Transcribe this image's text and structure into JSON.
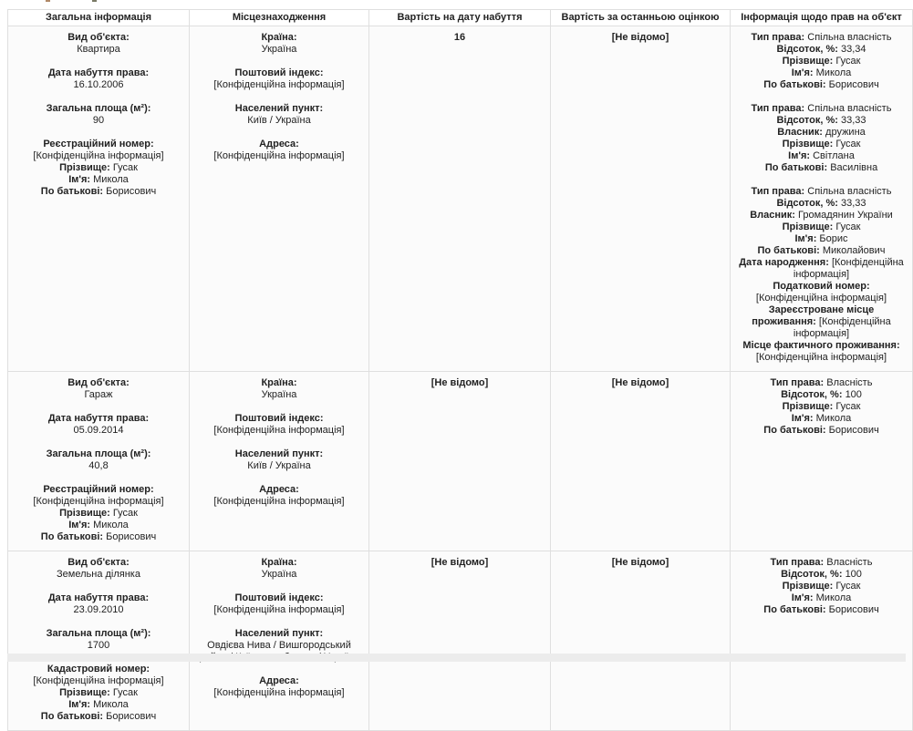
{
  "table": {
    "headers": [
      "Загальна інформація",
      "Місцезнаходження",
      "Вартість на дату набуття",
      "Вартість за останньою оцінкою",
      "Інформація щодо прав на об'єкт"
    ],
    "rows": [
      {
        "general": [
          {
            "inline": false,
            "label": "Вид об'єкта:",
            "value": "Квартира"
          },
          {
            "inline": false,
            "label": "Дата набуття права:",
            "value": "16.10.2006"
          },
          {
            "inline": false,
            "label": "Загальна площа (м²):",
            "value": "90"
          },
          {
            "inline": false,
            "label": "Реєстраційний номер:",
            "value": "[Конфіденційна інформація]"
          },
          {
            "inline": true,
            "label": "Прізвище:",
            "value": "Гусак"
          },
          {
            "inline": true,
            "label": "Ім'я:",
            "value": "Микола"
          },
          {
            "inline": true,
            "label": "По батькові:",
            "value": "Борисович"
          }
        ],
        "location": [
          {
            "inline": false,
            "label": "Країна:",
            "value": "Україна"
          },
          {
            "inline": false,
            "label": "Поштовий індекс:",
            "value": "[Конфіденційна інформація]"
          },
          {
            "inline": false,
            "label": "Населений пункт:",
            "value": "Київ / Україна"
          },
          {
            "inline": false,
            "label": "Адреса:",
            "value": "[Конфіденційна інформація]"
          }
        ],
        "value_at_acquisition": "16",
        "value_last_assessment": "[Не відомо]",
        "rights": [
          [
            {
              "label": "Тип права:",
              "value": "Спільна власність"
            },
            {
              "label": "Відсоток, %:",
              "value": "33,34"
            },
            {
              "label": "Прізвище:",
              "value": "Гусак"
            },
            {
              "label": "Ім'я:",
              "value": "Микола"
            },
            {
              "label": "По батькові:",
              "value": "Борисович"
            }
          ],
          [
            {
              "label": "Тип права:",
              "value": "Спільна власність"
            },
            {
              "label": "Відсоток, %:",
              "value": "33,33"
            },
            {
              "label": "Власник:",
              "value": "дружина"
            },
            {
              "label": "Прізвище:",
              "value": "Гусак"
            },
            {
              "label": "Ім'я:",
              "value": "Світлана"
            },
            {
              "label": "По батькові:",
              "value": "Василівна"
            }
          ],
          [
            {
              "label": "Тип права:",
              "value": "Спільна власність"
            },
            {
              "label": "Відсоток, %:",
              "value": "33,33"
            },
            {
              "label": "Власник:",
              "value": "Громадянин України"
            },
            {
              "label": "Прізвище:",
              "value": "Гусак"
            },
            {
              "label": "Ім'я:",
              "value": "Борис"
            },
            {
              "label": "По батькові:",
              "value": "Миколайович"
            },
            {
              "label": "Дата народження:",
              "value": "[Конфіденційна інформація]"
            },
            {
              "label": "Податковий номер:",
              "value": "[Конфіденційна інформація]"
            },
            {
              "label": "Зареєстроване місце проживання:",
              "value": "[Конфіденційна інформація]"
            },
            {
              "label": "Місце фактичного проживання:",
              "value": "[Конфіденційна інформація]"
            }
          ]
        ]
      },
      {
        "general": [
          {
            "inline": false,
            "label": "Вид об'єкта:",
            "value": "Гараж"
          },
          {
            "inline": false,
            "label": "Дата набуття права:",
            "value": "05.09.2014"
          },
          {
            "inline": false,
            "label": "Загальна площа (м²):",
            "value": "40,8"
          },
          {
            "inline": false,
            "label": "Реєстраційний номер:",
            "value": "[Конфіденційна інформація]"
          },
          {
            "inline": true,
            "label": "Прізвище:",
            "value": "Гусак"
          },
          {
            "inline": true,
            "label": "Ім'я:",
            "value": "Микола"
          },
          {
            "inline": true,
            "label": "По батькові:",
            "value": "Борисович"
          }
        ],
        "location": [
          {
            "inline": false,
            "label": "Країна:",
            "value": "Україна"
          },
          {
            "inline": false,
            "label": "Поштовий індекс:",
            "value": "[Конфіденційна інформація]"
          },
          {
            "inline": false,
            "label": "Населений пункт:",
            "value": "Київ / Україна"
          },
          {
            "inline": false,
            "label": "Адреса:",
            "value": "[Конфіденційна інформація]"
          }
        ],
        "value_at_acquisition": "[Не відомо]",
        "value_last_assessment": "[Не відомо]",
        "rights": [
          [
            {
              "label": "Тип права:",
              "value": "Власність"
            },
            {
              "label": "Відсоток, %:",
              "value": "100"
            },
            {
              "label": "Прізвище:",
              "value": "Гусак"
            },
            {
              "label": "Ім'я:",
              "value": "Микола"
            },
            {
              "label": "По батькові:",
              "value": "Борисович"
            }
          ]
        ]
      },
      {
        "general": [
          {
            "inline": false,
            "label": "Вид об'єкта:",
            "value": "Земельна ділянка"
          },
          {
            "inline": false,
            "label": "Дата набуття права:",
            "value": "23.09.2010"
          },
          {
            "inline": false,
            "label": "Загальна площа (м²):",
            "value": "1700"
          },
          {
            "inline": false,
            "label": "Кадастровий номер:",
            "value": "[Конфіденційна інформація]"
          },
          {
            "inline": true,
            "label": "Прізвище:",
            "value": "Гусак"
          },
          {
            "inline": true,
            "label": "Ім'я:",
            "value": "Микола"
          },
          {
            "inline": true,
            "label": "По батькові:",
            "value": "Борисович"
          }
        ],
        "location": [
          {
            "inline": false,
            "label": "Країна:",
            "value": "Україна"
          },
          {
            "inline": false,
            "label": "Поштовий індекс:",
            "value": "[Конфіденційна інформація]"
          },
          {
            "inline": false,
            "label": "Населений пункт:",
            "value": "Овдієва Нива / Вишгородський район / Київська область / Україна"
          },
          {
            "inline": false,
            "label": "Адреса:",
            "value": "[Конфіденційна інформація]"
          }
        ],
        "value_at_acquisition": "[Не відомо]",
        "value_last_assessment": "[Не відомо]",
        "rights": [
          [
            {
              "label": "Тип права:",
              "value": "Власність"
            },
            {
              "label": "Відсоток, %:",
              "value": "100"
            },
            {
              "label": "Прізвище:",
              "value": "Гусак"
            },
            {
              "label": "Ім'я:",
              "value": "Микола"
            },
            {
              "label": "По батькові:",
              "value": "Борисович"
            }
          ]
        ]
      }
    ]
  }
}
